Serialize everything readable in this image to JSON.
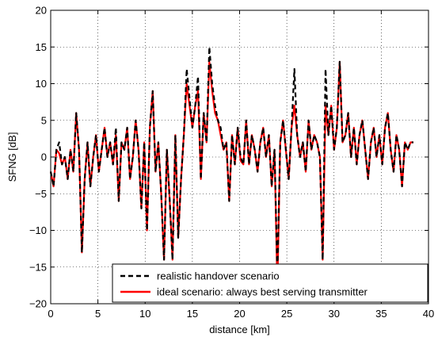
{
  "chart_data": {
    "type": "line",
    "xlabel": "distance [km]",
    "ylabel": "SFNG [dB]",
    "xlim": [
      0,
      40
    ],
    "ylim": [
      -20,
      20
    ],
    "xticks": [
      0,
      5,
      10,
      15,
      20,
      25,
      30,
      35,
      40
    ],
    "yticks": [
      -20,
      -15,
      -10,
      -5,
      0,
      5,
      10,
      15,
      20
    ],
    "ytick_labels": [
      "−20",
      "−15",
      "−10",
      "−5",
      "0",
      "5",
      "10",
      "15",
      "20"
    ],
    "grid": "dotted",
    "legend_position": "bottom-right",
    "series": [
      {
        "name": "realistic handover scenario",
        "color": "#000000",
        "style": "dashed",
        "x": [
          0.0,
          0.3,
          0.6,
          0.9,
          1.2,
          1.5,
          1.8,
          2.1,
          2.4,
          2.7,
          3.0,
          3.3,
          3.6,
          3.9,
          4.2,
          4.5,
          4.8,
          5.1,
          5.4,
          5.7,
          6.0,
          6.3,
          6.6,
          6.9,
          7.2,
          7.5,
          7.8,
          8.1,
          8.4,
          8.7,
          9.0,
          9.3,
          9.6,
          9.9,
          10.2,
          10.5,
          10.8,
          11.1,
          11.4,
          11.7,
          12.0,
          12.3,
          12.6,
          12.9,
          13.2,
          13.5,
          13.8,
          14.1,
          14.4,
          14.7,
          15.0,
          15.3,
          15.6,
          15.9,
          16.2,
          16.5,
          16.8,
          17.1,
          17.4,
          17.7,
          18.0,
          18.3,
          18.6,
          18.9,
          19.2,
          19.5,
          19.8,
          20.1,
          20.4,
          20.7,
          21.0,
          21.3,
          21.6,
          21.9,
          22.2,
          22.5,
          22.8,
          23.1,
          23.4,
          23.7,
          24.0,
          24.3,
          24.6,
          24.9,
          25.2,
          25.5,
          25.8,
          26.1,
          26.4,
          26.7,
          27.0,
          27.3,
          27.6,
          27.9,
          28.2,
          28.5,
          28.8,
          29.1,
          29.4,
          29.7,
          30.0,
          30.3,
          30.6,
          30.9,
          31.2,
          31.5,
          31.8,
          32.1,
          32.4,
          32.7,
          33.0,
          33.3,
          33.6,
          33.9,
          34.2,
          34.5,
          34.8,
          35.1,
          35.4,
          35.7,
          36.0,
          36.3,
          36.6,
          36.9,
          37.2,
          37.5,
          37.8,
          38.1,
          38.4
        ],
        "y": [
          -2,
          -4,
          1,
          2,
          -1,
          0,
          -3,
          1,
          -2,
          6,
          1,
          -13,
          -3,
          2,
          -4,
          0,
          3,
          -2,
          1,
          4,
          0,
          2,
          -1,
          4,
          -6,
          2,
          1,
          4,
          -3,
          0,
          5,
          1,
          -7,
          2,
          -10,
          4,
          9,
          -2,
          2,
          -5,
          -14,
          1,
          -6,
          -14,
          3,
          -11,
          -3,
          3,
          12,
          8,
          4,
          7,
          11,
          -3,
          6,
          2,
          15,
          10,
          7,
          5,
          4,
          1,
          2,
          -6,
          3,
          -1,
          4,
          0,
          -1,
          5,
          -1,
          3,
          1,
          -2,
          2,
          4,
          0,
          3,
          -4,
          1,
          -16,
          2,
          5,
          1,
          -3,
          4,
          12,
          3,
          0,
          2,
          -2,
          5,
          1,
          3,
          2,
          0,
          -14,
          12,
          3,
          7,
          1,
          4,
          13,
          2,
          3,
          6,
          0,
          4,
          -1,
          3,
          5,
          1,
          -3,
          2,
          4,
          0,
          3,
          -1,
          4,
          6,
          1,
          -2,
          3,
          1,
          -4,
          2,
          1,
          2,
          2
        ]
      },
      {
        "name": "ideal scenario: always best serving transmitter",
        "color": "#ff0000",
        "style": "solid",
        "x": [
          0.0,
          0.3,
          0.6,
          0.9,
          1.2,
          1.5,
          1.8,
          2.1,
          2.4,
          2.7,
          3.0,
          3.3,
          3.6,
          3.9,
          4.2,
          4.5,
          4.8,
          5.1,
          5.4,
          5.7,
          6.0,
          6.3,
          6.6,
          6.9,
          7.2,
          7.5,
          7.8,
          8.1,
          8.4,
          8.7,
          9.0,
          9.3,
          9.6,
          9.9,
          10.2,
          10.5,
          10.8,
          11.1,
          11.4,
          11.7,
          12.0,
          12.3,
          12.6,
          12.9,
          13.2,
          13.5,
          13.8,
          14.1,
          14.4,
          14.7,
          15.0,
          15.3,
          15.6,
          15.9,
          16.2,
          16.5,
          16.8,
          17.1,
          17.4,
          17.7,
          18.0,
          18.3,
          18.6,
          18.9,
          19.2,
          19.5,
          19.8,
          20.1,
          20.4,
          20.7,
          21.0,
          21.3,
          21.6,
          21.9,
          22.2,
          22.5,
          22.8,
          23.1,
          23.4,
          23.7,
          24.0,
          24.3,
          24.6,
          24.9,
          25.2,
          25.5,
          25.8,
          26.1,
          26.4,
          26.7,
          27.0,
          27.3,
          27.6,
          27.9,
          28.2,
          28.5,
          28.8,
          29.1,
          29.4,
          29.7,
          30.0,
          30.3,
          30.6,
          30.9,
          31.2,
          31.5,
          31.8,
          32.1,
          32.4,
          32.7,
          33.0,
          33.3,
          33.6,
          33.9,
          34.2,
          34.5,
          34.8,
          35.1,
          35.4,
          35.7,
          36.0,
          36.3,
          36.6,
          36.9,
          37.2,
          37.5,
          37.8,
          38.1,
          38.4
        ],
        "y": [
          -2,
          -4,
          1,
          0.5,
          -1,
          0,
          -3,
          1,
          -2,
          6,
          1,
          -13,
          -3,
          2,
          -4,
          0,
          3,
          -2,
          1,
          4,
          0,
          2,
          -1,
          3,
          -6,
          2,
          1,
          4,
          -3,
          0,
          5,
          1,
          -7,
          2,
          -10,
          4,
          9,
          -2,
          2,
          -5,
          -14,
          1,
          -6,
          -14,
          3,
          -11,
          -3,
          3,
          10,
          7,
          4,
          7,
          9,
          -3,
          6,
          2,
          13,
          9,
          6,
          5,
          3,
          1,
          2,
          -6,
          3,
          -1,
          4,
          -0.5,
          -1,
          5,
          -1,
          3,
          1,
          -2,
          2,
          4,
          0,
          3,
          -4,
          1,
          -18,
          2,
          5,
          1,
          -3,
          4,
          7,
          3,
          0,
          2,
          -2,
          5,
          1,
          3,
          2,
          0,
          -14,
          7,
          3,
          7,
          1,
          4,
          13,
          2,
          3,
          6,
          0,
          4,
          -1,
          3,
          5,
          1,
          -3,
          2,
          4,
          0,
          3,
          -1,
          4,
          6,
          1,
          -2,
          3,
          1,
          -4,
          2,
          1,
          2,
          2
        ]
      }
    ]
  }
}
